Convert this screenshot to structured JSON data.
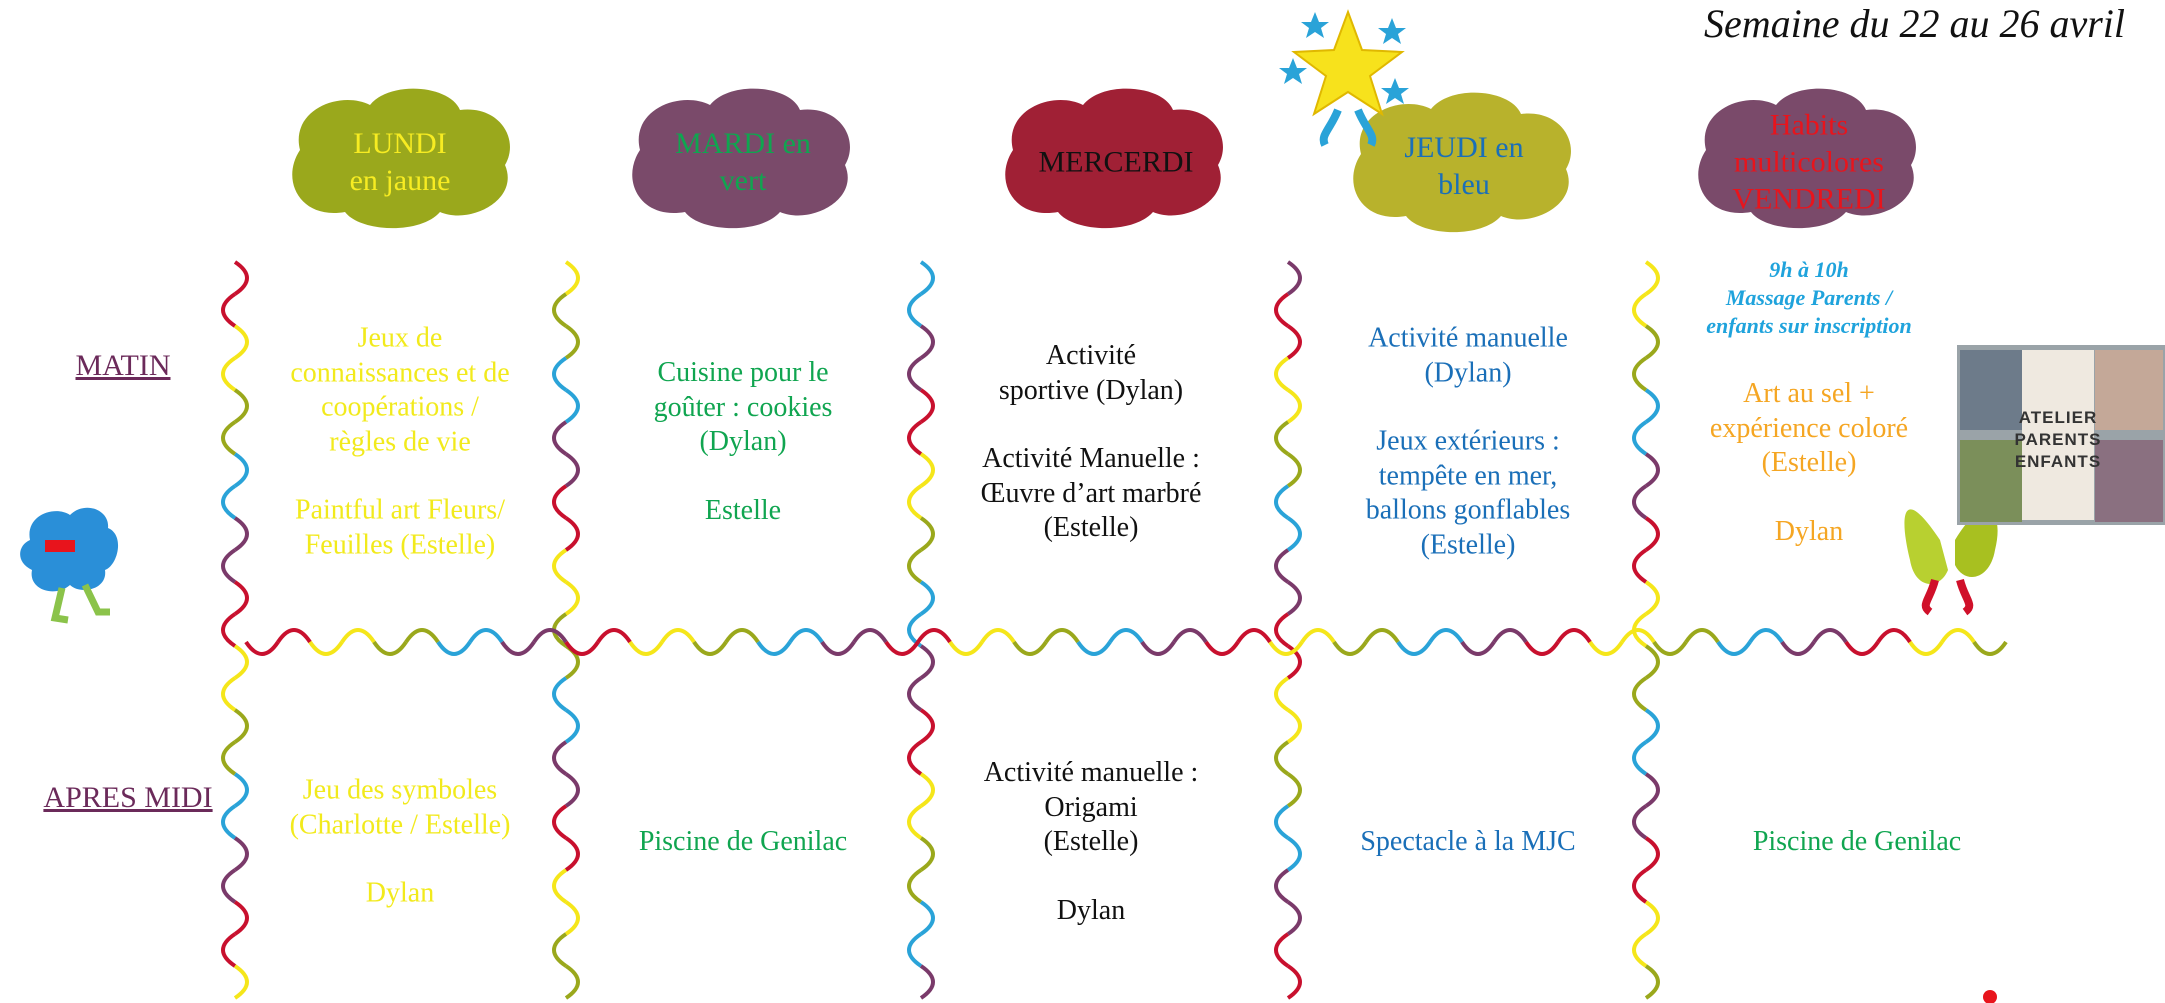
{
  "title": "Semaine du 22 au 26 avril",
  "days": [
    {
      "lines": [
        "LUNDI",
        "en jaune"
      ]
    },
    {
      "lines": [
        "MARDI en",
        "vert"
      ]
    },
    {
      "lines": [
        "MERCERDI"
      ]
    },
    {
      "lines": [
        "JEUDI en",
        "bleu"
      ]
    },
    {
      "lines": [
        "Habits",
        "multicolores",
        "VENDREDI"
      ]
    }
  ],
  "rows": [
    {
      "label": "MATIN",
      "cells": [
        {
          "paragraphs": [
            [
              "Jeux de",
              "connaissances et de",
              "coopérations /",
              "règles de vie"
            ],
            [
              "Paintful art Fleurs/",
              "Feuilles (Estelle)"
            ]
          ]
        },
        {
          "paragraphs": [
            [
              "Cuisine pour le",
              "goûter : cookies",
              "(Dylan)"
            ],
            [
              "Estelle"
            ]
          ]
        },
        {
          "paragraphs": [
            [
              "Activité",
              "sportive (Dylan)"
            ],
            [
              "Activité Manuelle :",
              "Œuvre d’art marbré",
              "(Estelle)"
            ]
          ]
        },
        {
          "paragraphs": [
            [
              "Activité manuelle",
              "(Dylan)"
            ],
            [
              "Jeux extérieurs :",
              "tempête en mer,",
              "ballons gonflables",
              "(Estelle)"
            ]
          ]
        },
        {
          "note": [
            "9h à 10h",
            "Massage Parents /",
            "enfants sur inscription"
          ],
          "paragraphs": [
            [
              "Art au sel +",
              "expérience coloré",
              "(Estelle)"
            ],
            [
              "Dylan"
            ]
          ]
        }
      ]
    },
    {
      "label": "APRES MIDI",
      "cells": [
        {
          "paragraphs": [
            [
              "Jeu des symboles",
              "(Charlotte / Estelle)"
            ],
            [
              "Dylan"
            ]
          ]
        },
        {
          "paragraphs": [
            [
              "Piscine de Genilac"
            ]
          ]
        },
        {
          "paragraphs": [
            [
              "Activité manuelle :",
              "Origami",
              "(Estelle)"
            ],
            [
              "Dylan"
            ]
          ]
        },
        {
          "paragraphs": [
            [
              "Spectacle à la MJC"
            ]
          ]
        },
        {
          "paragraphs": [
            [
              "Piscine de Genilac"
            ]
          ]
        }
      ]
    }
  ],
  "photo": {
    "lines": [
      "ATELIER",
      "PARENTS",
      "ENFANTS"
    ]
  }
}
